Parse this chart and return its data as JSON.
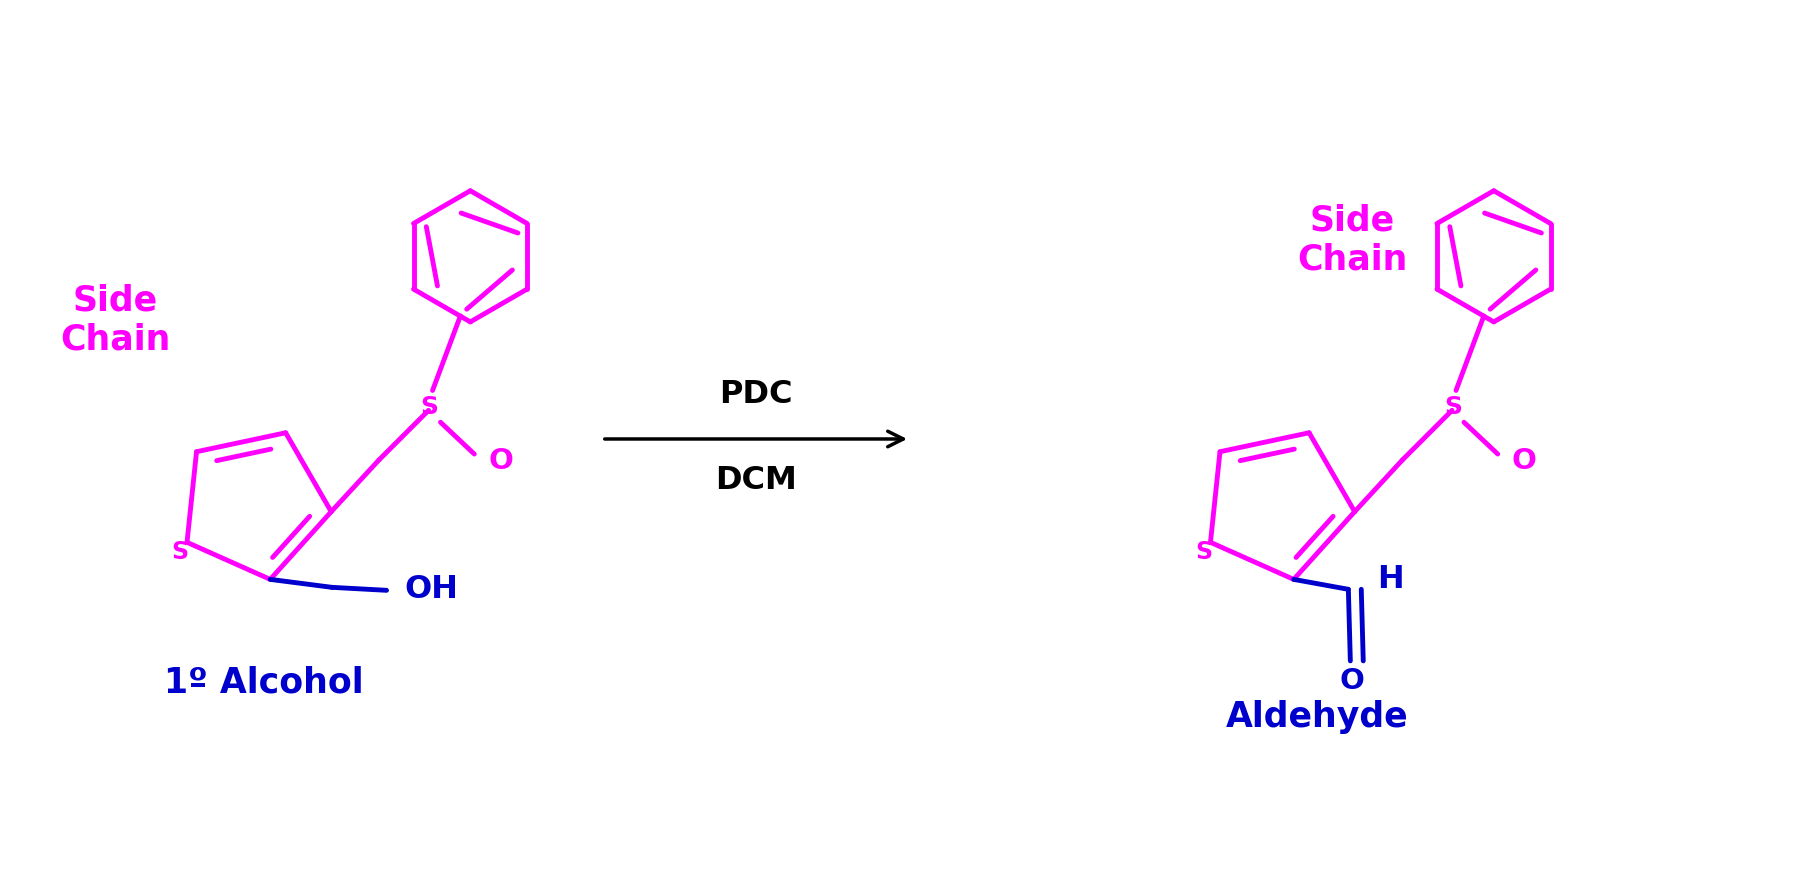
{
  "background_color": "#ffffff",
  "magenta": "#FF00FF",
  "blue": "#0000CD",
  "black": "#000000",
  "arrow_text_top": "PDC",
  "arrow_text_bottom": "DCM",
  "label_left": "Side\nChain",
  "label_right": "Side\nChain",
  "label_alcohol": "1º Alcohol",
  "label_aldehyde": "Aldehyde",
  "lw": 3.5,
  "figsize": [
    18.0,
    8.74
  ],
  "dpi": 100
}
